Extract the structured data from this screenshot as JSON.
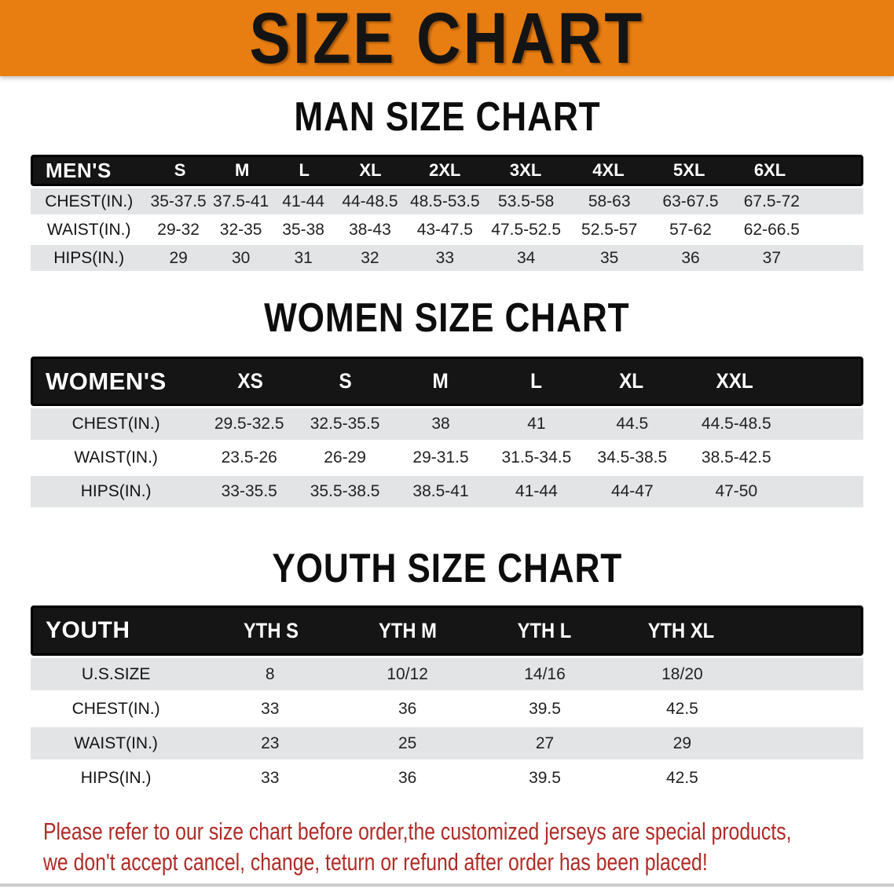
{
  "banner": {
    "title": "SIZE CHART"
  },
  "sections": [
    {
      "id": "men",
      "heading": "MAN SIZE CHART",
      "group_label": "MEN'S",
      "sizes": [
        "S",
        "M",
        "L",
        "XL",
        "2XL",
        "3XL",
        "4XL",
        "5XL",
        "6XL"
      ],
      "rows": [
        {
          "label": "CHEST(IN.)",
          "values": [
            "35-37.5",
            "37.5-41",
            "41-44",
            "44-48.5",
            "48.5-53.5",
            "53.5-58",
            "58-63",
            "63-67.5",
            "67.5-72"
          ]
        },
        {
          "label": "WAIST(IN.)",
          "values": [
            "29-32",
            "32-35",
            "35-38",
            "38-43",
            "43-47.5",
            "47.5-52.5",
            "52.5-57",
            "57-62",
            "62-66.5"
          ]
        },
        {
          "label": "HIPS(IN.)",
          "values": [
            "29",
            "30",
            "31",
            "32",
            "33",
            "34",
            "35",
            "36",
            "37"
          ]
        }
      ]
    },
    {
      "id": "women",
      "heading": "WOMEN SIZE CHART",
      "group_label": "WOMEN'S",
      "sizes": [
        "XS",
        "S",
        "M",
        "L",
        "XL",
        "XXL"
      ],
      "rows": [
        {
          "label": "CHEST(IN.)",
          "values": [
            "29.5-32.5",
            "32.5-35.5",
            "38",
            "41",
            "44.5",
            "44.5-48.5"
          ]
        },
        {
          "label": "WAIST(IN.)",
          "values": [
            "23.5-26",
            "26-29",
            "29-31.5",
            "31.5-34.5",
            "34.5-38.5",
            "38.5-42.5"
          ]
        },
        {
          "label": "HIPS(IN.)",
          "values": [
            "33-35.5",
            "35.5-38.5",
            "38.5-41",
            "41-44",
            "44-47",
            "47-50"
          ]
        }
      ]
    },
    {
      "id": "youth",
      "heading": "YOUTH SIZE CHART",
      "group_label": "YOUTH",
      "sizes": [
        "YTH S",
        "YTH M",
        "YTH L",
        "YTH XL"
      ],
      "rows": [
        {
          "label": "U.S.SIZE",
          "values": [
            "8",
            "10/12",
            "14/16",
            "18/20"
          ]
        },
        {
          "label": "CHEST(IN.)",
          "values": [
            "33",
            "36",
            "39.5",
            "42.5"
          ]
        },
        {
          "label": "WAIST(IN.)",
          "values": [
            "23",
            "25",
            "27",
            "29"
          ]
        },
        {
          "label": "HIPS(IN.)",
          "values": [
            "33",
            "36",
            "39.5",
            "42.5"
          ]
        }
      ]
    }
  ],
  "disclaimer": {
    "line1": "Please refer to our size chart before order,the customized jerseys are special products,",
    "line2": "we don't accept cancel, change, teturn or refund after order has been placed!"
  },
  "colors": {
    "banner_bg": "#E87E12",
    "header_bar_bg": "#151515",
    "row_shade": "#E3E4E6",
    "disclaimer_red": "#AF2B26"
  }
}
